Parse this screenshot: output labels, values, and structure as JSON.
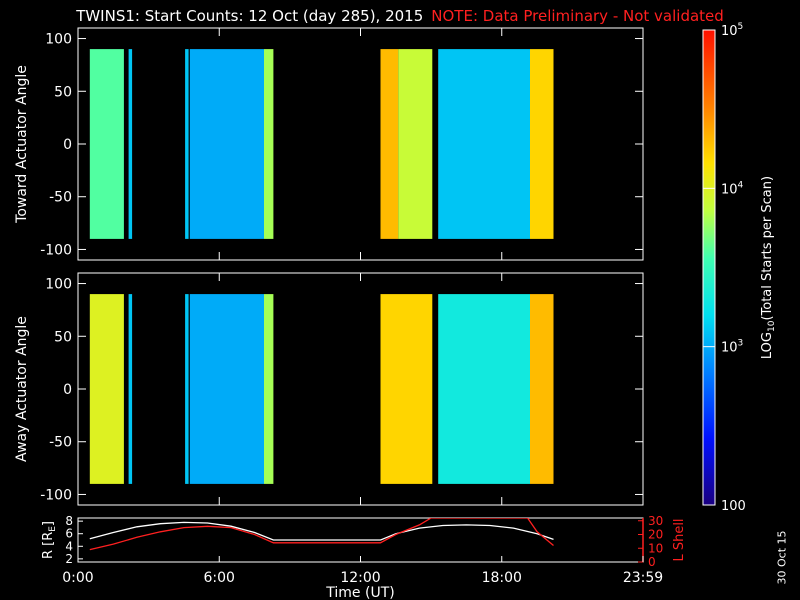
{
  "title": {
    "main": "TWINS1: Start Counts: 12 Oct (day 285), 2015",
    "note": "NOTE: Data Preliminary - Not validated"
  },
  "side_date": "30 Oct 15",
  "colors": {
    "background": "#000000",
    "axes": "#ffffff",
    "note": "#ff2020",
    "l_shell": "#ff2020",
    "r_line": "#ffffff"
  },
  "chart_data": [
    {
      "type": "heatmap",
      "ylabel": "Toward Actuator Angle",
      "xlim": [
        0,
        24
      ],
      "ylim": [
        -110,
        110
      ],
      "yticks": [
        -100,
        -50,
        0,
        50,
        100
      ],
      "ytick_labels": [
        "-100",
        "-50",
        "0",
        "50",
        "100"
      ],
      "data_range_y": [
        -90,
        90
      ],
      "segments": [
        {
          "start": 0.5,
          "end": 1.95,
          "level": 3.6
        },
        {
          "start": 2.15,
          "end": 2.3,
          "level": 3.1
        },
        {
          "start": 4.55,
          "end": 4.7,
          "level": 3.1
        },
        {
          "start": 4.75,
          "end": 7.9,
          "level": 3.0
        },
        {
          "start": 7.9,
          "end": 8.3,
          "level": 3.8
        },
        {
          "start": 12.85,
          "end": 13.6,
          "level": 4.3
        },
        {
          "start": 13.6,
          "end": 15.05,
          "level": 3.9
        },
        {
          "start": 15.3,
          "end": 19.2,
          "level": 3.1
        },
        {
          "start": 19.2,
          "end": 20.2,
          "level": 4.2
        }
      ]
    },
    {
      "type": "heatmap",
      "ylabel": "Away Actuator Angle",
      "xlim": [
        0,
        24
      ],
      "ylim": [
        -110,
        110
      ],
      "yticks": [
        -100,
        -50,
        0,
        50,
        100
      ],
      "ytick_labels": [
        "-100",
        "-50",
        "0",
        "50",
        "100"
      ],
      "data_range_y": [
        -90,
        90
      ],
      "segments": [
        {
          "start": 0.5,
          "end": 1.95,
          "level": 4.0
        },
        {
          "start": 2.15,
          "end": 2.3,
          "level": 3.1
        },
        {
          "start": 4.55,
          "end": 4.7,
          "level": 3.1
        },
        {
          "start": 4.75,
          "end": 7.9,
          "level": 3.0
        },
        {
          "start": 7.9,
          "end": 8.3,
          "level": 3.8
        },
        {
          "start": 12.85,
          "end": 15.05,
          "level": 4.2
        },
        {
          "start": 15.3,
          "end": 19.2,
          "level": 3.3
        },
        {
          "start": 19.2,
          "end": 20.2,
          "level": 4.3
        }
      ]
    },
    {
      "type": "line",
      "xlabel": "Time (UT)",
      "xlim": [
        0,
        24
      ],
      "xticks": [
        0,
        6,
        12,
        18,
        24
      ],
      "xtick_labels": [
        "0:00",
        "6:00",
        "12:00",
        "18:00",
        "23:59"
      ],
      "ylabel_left": "R [R",
      "ylabel_left_sub": "E",
      "ylabel_left_close": "]",
      "ylim_left": [
        1.5,
        8.5
      ],
      "yticks_left": [
        2,
        4,
        6,
        8
      ],
      "ytick_labels_left": [
        "2",
        "4",
        "6",
        "8"
      ],
      "ylabel_right": "L Shell",
      "ylim_right": [
        0,
        32
      ],
      "yticks_right": [
        0,
        10,
        20,
        30
      ],
      "ytick_labels_right": [
        "0",
        "10",
        "20",
        "30"
      ],
      "series": [
        {
          "axis": "left",
          "color": "#ffffff",
          "x": [
            0.5,
            1.5,
            2.5,
            3.5,
            4.5,
            5.5,
            6.5,
            7.5,
            8.3,
            12.85,
            13.5,
            14.5,
            15.5,
            16.5,
            17.5,
            18.5,
            19.5,
            20.2
          ],
          "y": [
            5.2,
            6.2,
            7.1,
            7.6,
            7.8,
            7.7,
            7.2,
            6.2,
            5.0,
            5.0,
            6.0,
            6.9,
            7.3,
            7.4,
            7.3,
            6.9,
            6.0,
            5.1
          ]
        },
        {
          "axis": "right",
          "color": "#ff2020",
          "x": [
            0.5,
            1.5,
            2.5,
            3.5,
            4.5,
            5.5,
            6.5,
            7.5,
            8.3,
            12.85,
            13.5,
            14.5,
            15.0,
            19.1,
            19.5,
            20.2
          ],
          "y": [
            9,
            13,
            18,
            22,
            25,
            26,
            25,
            20,
            14,
            14,
            20,
            27,
            32,
            32,
            22,
            12
          ]
        }
      ]
    }
  ],
  "colorbar": {
    "label_prefix": "LOG",
    "label_sub": "10",
    "label_suffix": "(Total Starts per Scan)",
    "ticks": [
      {
        "base": "10",
        "exp": "5",
        "level": 5
      },
      {
        "base": "10",
        "exp": "4",
        "level": 4
      },
      {
        "base": "10",
        "exp": "3",
        "level": 3
      },
      {
        "base": "100",
        "exp": "",
        "level": 2
      }
    ],
    "range": [
      2,
      5
    ]
  }
}
